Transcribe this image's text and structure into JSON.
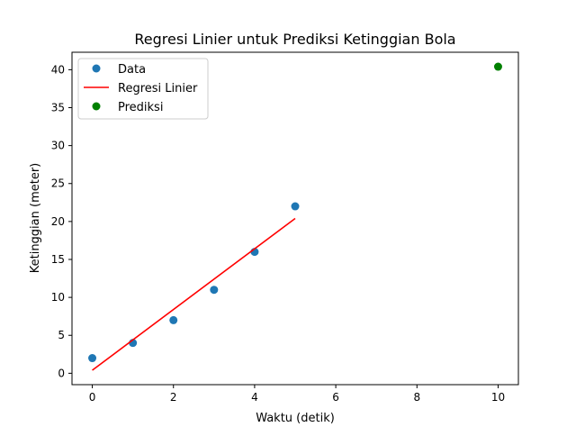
{
  "chart_data": {
    "type": "scatter",
    "title": "Regresi Linier untuk Prediksi Ketinggian Bola",
    "xlabel": "Waktu (detik)",
    "ylabel": "Ketinggian (meter)",
    "xlim": [
      -0.5,
      10.5
    ],
    "ylim": [
      -1.5,
      42.3
    ],
    "xticks": [
      0,
      2,
      4,
      6,
      8,
      10
    ],
    "yticks": [
      0,
      5,
      10,
      15,
      20,
      25,
      30,
      35,
      40
    ],
    "grid": false,
    "legend_position": "top-left",
    "series": [
      {
        "name": "Data",
        "kind": "scatter",
        "color": "#1f77b4",
        "x": [
          0,
          1,
          2,
          3,
          4,
          5
        ],
        "y": [
          2,
          4,
          7,
          11,
          16,
          22
        ]
      },
      {
        "name": "Regresi Linier",
        "kind": "line",
        "color": "#ff0000",
        "x": [
          0,
          5
        ],
        "y": [
          0.4,
          20.4
        ]
      },
      {
        "name": "Prediksi",
        "kind": "scatter",
        "color": "#008000",
        "x": [
          10
        ],
        "y": [
          40.4
        ]
      }
    ]
  }
}
